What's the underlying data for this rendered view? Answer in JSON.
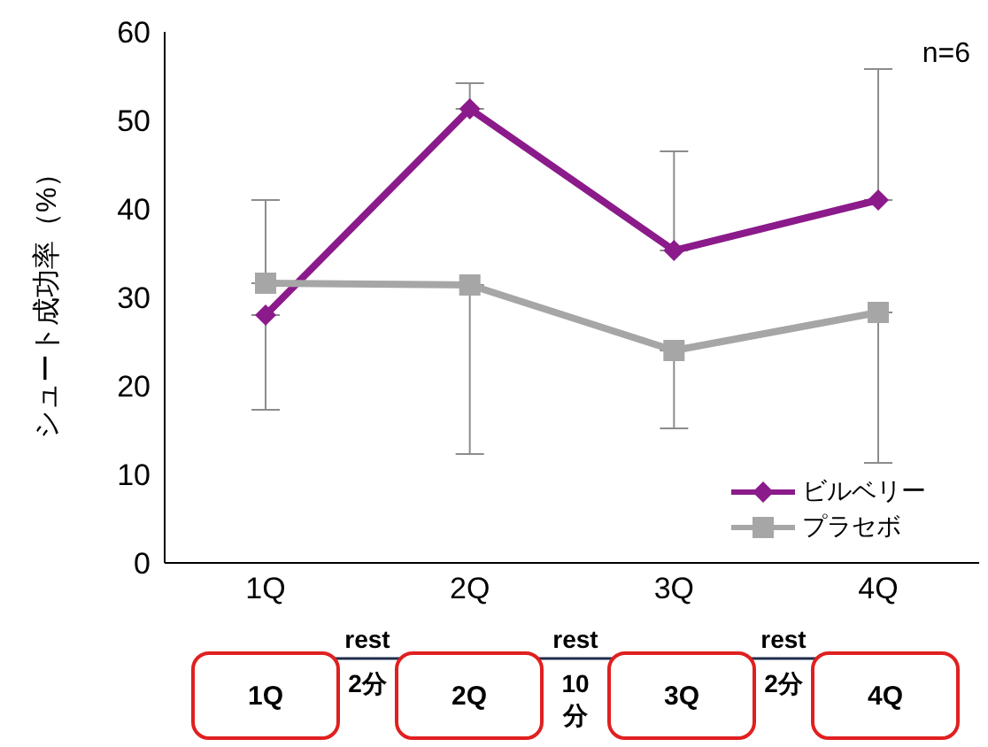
{
  "chart_data": {
    "type": "line",
    "ylabel": "シュート成功率（%）",
    "categories": [
      "1Q",
      "2Q",
      "3Q",
      "4Q"
    ],
    "series": [
      {
        "name": "ビルベリー",
        "color": "#8b1a8b",
        "marker": "diamond",
        "values": [
          28,
          51.3,
          35.3,
          41
        ],
        "errors": [
          [
            17.3,
            28
          ],
          [
            51.3,
            54.2
          ],
          [
            35.3,
            46.5
          ],
          [
            41,
            55.8
          ]
        ]
      },
      {
        "name": "プラセボ",
        "color": "#a6a6a6",
        "marker": "square",
        "values": [
          31.6,
          31.4,
          24,
          28.3
        ],
        "errors": [
          [
            31.6,
            41
          ],
          [
            12.3,
            31.4
          ],
          [
            15.2,
            24
          ],
          [
            11.3,
            28.3
          ]
        ]
      }
    ],
    "ylim": [
      0,
      60
    ],
    "yticks": [
      0,
      10,
      20,
      30,
      40,
      50,
      60
    ],
    "grid": false,
    "legend": "bottom right",
    "annotations": [
      "n=6",
      "1Q",
      "rest",
      "2分",
      "2Q",
      "rest",
      "10分",
      "3Q",
      "rest",
      "2分",
      "4Q"
    ]
  }
}
